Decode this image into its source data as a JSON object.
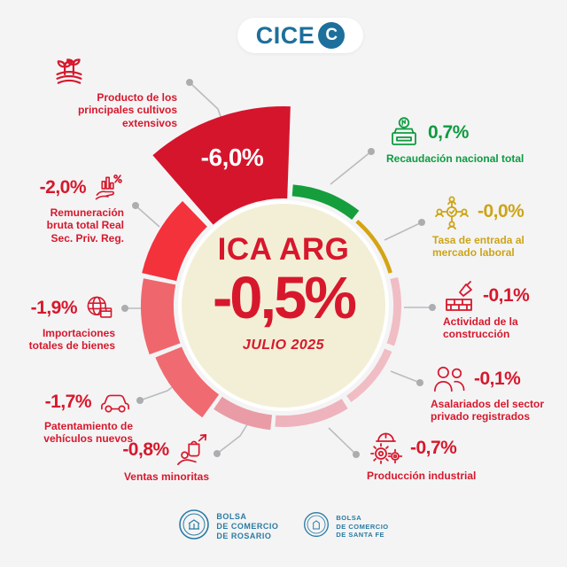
{
  "header": {
    "logo_text": "CICE",
    "logo_badge": "C"
  },
  "center": {
    "title": "ICA ARG",
    "value": "-0,5%",
    "period": "JULIO 2025",
    "bg_color": "#f3efd6"
  },
  "indicators": [
    {
      "id": "cultivos",
      "value": "-6,0%",
      "label": "Producto de los principales cultivos extensivos",
      "color": "#d7182c",
      "icon": "crop-icon"
    },
    {
      "id": "recaudacion",
      "value": "0,7%",
      "label": "Recaudación nacional total",
      "color": "#0d9b3f",
      "icon": "money-box-icon"
    },
    {
      "id": "tasa",
      "value": "-0,0%",
      "label": "Tasa de entrada al mercado laboral",
      "color": "#cda416",
      "icon": "labor-network-icon"
    },
    {
      "id": "construccion",
      "value": "-0,1%",
      "label": "Actividad de la construcción",
      "color": "#d7182c",
      "icon": "construction-icon"
    },
    {
      "id": "asalariados",
      "value": "-0,1%",
      "label": "Asalariados del sector privado registrados",
      "color": "#d7182c",
      "icon": "employees-icon"
    },
    {
      "id": "produccion",
      "value": "-0,7%",
      "label": "Producción industrial",
      "color": "#d7182c",
      "icon": "industry-icon"
    },
    {
      "id": "ventas",
      "value": "-0,8%",
      "label": "Ventas minoritas",
      "color": "#d7182c",
      "icon": "retail-hand-icon"
    },
    {
      "id": "patentamiento",
      "value": "-1,7%",
      "label": "Patentamiento de vehículos nuevos",
      "color": "#d7182c",
      "icon": "car-icon"
    },
    {
      "id": "importaciones",
      "value": "-1,9%",
      "label": "Importaciones totales de bienes",
      "color": "#d7182c",
      "icon": "imports-globe-icon"
    },
    {
      "id": "remuneracion",
      "value": "-2,0%",
      "label": "Remuneración bruta total Real Sec. Priv. Reg.",
      "color": "#d7182c",
      "icon": "wage-chart-icon"
    }
  ],
  "chart_data": {
    "type": "pie",
    "title": "ICA ARG",
    "center_value": "-0,5%",
    "period": "JULIO 2025",
    "legend_position": "around",
    "segments": [
      {
        "name": "Producto de los principales cultivos extensivos",
        "value": -6.0,
        "color": "#d5152c"
      },
      {
        "name": "Recaudación nacional total",
        "value": 0.7,
        "color": "#169e3c"
      },
      {
        "name": "Tasa de entrada al mercado laboral",
        "value": -0.0,
        "color": "#d4a413"
      },
      {
        "name": "Actividad de la construcción",
        "value": -0.1,
        "color": "#f0bdc4"
      },
      {
        "name": "Asalariados del sector privado registrados",
        "value": -0.1,
        "color": "#f0bdc4"
      },
      {
        "name": "Producción industrial",
        "value": -0.7,
        "color": "#eeb3bc"
      },
      {
        "name": "Ventas minoritas",
        "value": -0.8,
        "color": "#e99ca6"
      },
      {
        "name": "Patentamiento de vehículos nuevos",
        "value": -1.7,
        "color": "#ef6b71"
      },
      {
        "name": "Importaciones totales de bienes",
        "value": -1.9,
        "color": "#ef676d"
      },
      {
        "name": "Remuneración bruta total Real Sec. Priv. Reg.",
        "value": -2.0,
        "color": "#f4323c"
      }
    ]
  },
  "footer": {
    "rosario": [
      "BOLSA",
      "DE COMERCIO",
      "DE ROSARIO"
    ],
    "santafe": [
      "BOLSA",
      "DE COMERCIO",
      "DE SANTA FE"
    ]
  }
}
